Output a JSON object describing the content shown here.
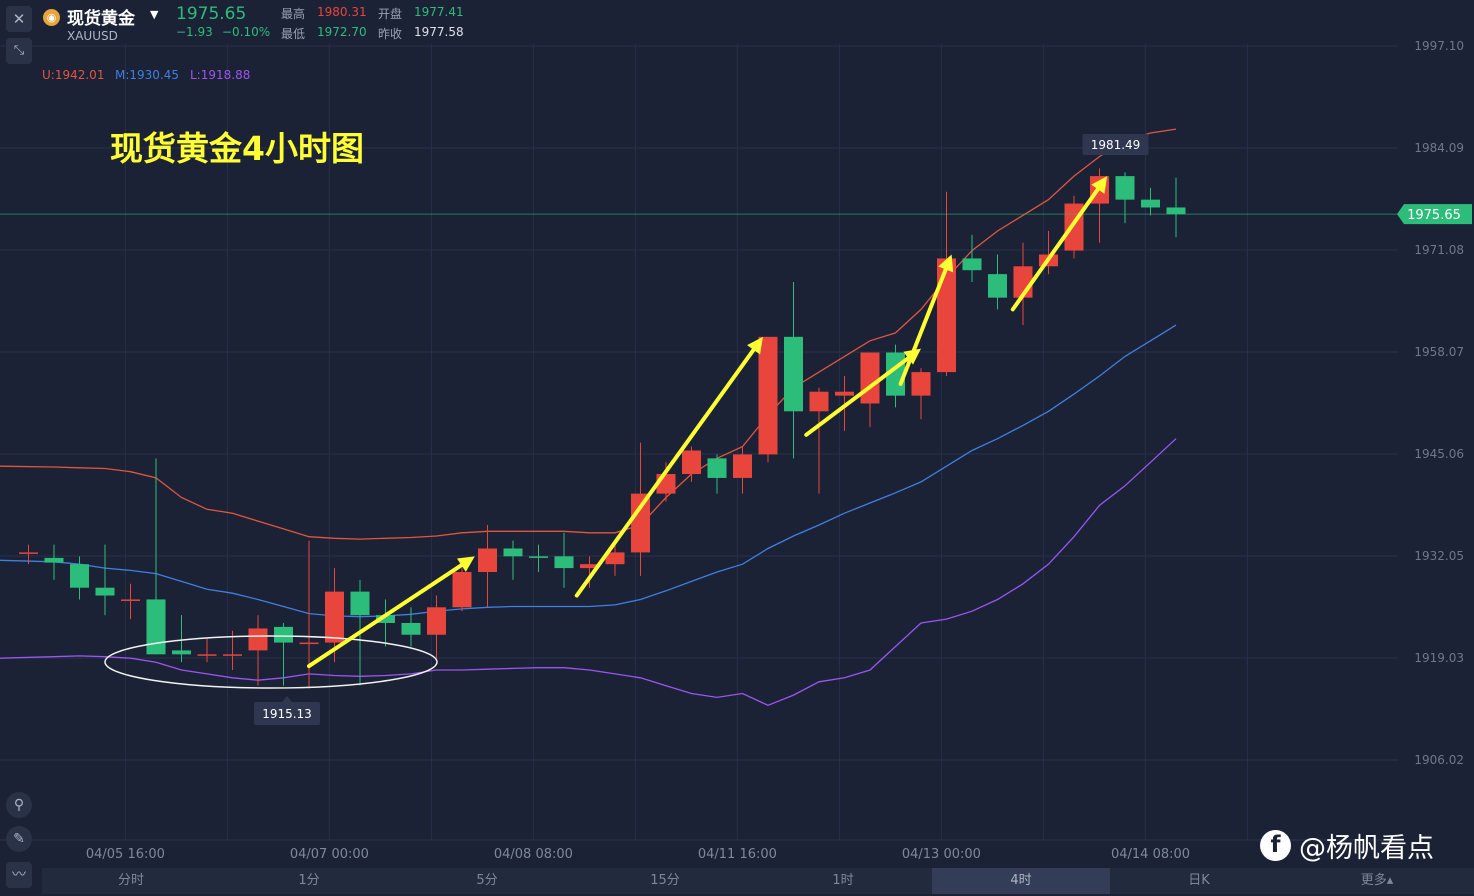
{
  "header": {
    "symbol_name": "现货黄金",
    "symbol_code": "XAUUSD",
    "last_price": "1975.65",
    "change": "−1.93",
    "change_pct": "−0.10%",
    "high_label": "最高",
    "high_value": "1980.31",
    "low_label": "最低",
    "low_value": "1972.70",
    "open_label": "开盘",
    "open_value": "1977.41",
    "prev_close_label": "昨收",
    "prev_close_value": "1977.58"
  },
  "bollinger": {
    "upper": "U:1942.01",
    "middle": "M:1930.45",
    "lower": "L:1918.88"
  },
  "timeframes": [
    "分时",
    "1分",
    "5分",
    "15分",
    "1时",
    "4时",
    "日K",
    "更多▴"
  ],
  "active_timeframe": "4时",
  "watermark": "@杨帆看点",
  "colors": {
    "background": "#1b2236",
    "up": "#e8453c",
    "down": "#2dbd7b",
    "upper_band": "#e0563f",
    "middle_band": "#3f7fe0",
    "lower_band": "#9b55f0",
    "arrow": "#ffff33"
  },
  "chart_data": {
    "type": "candlestick",
    "title": "现货黄金4小时图",
    "ylim": [
      1895.0,
      2000.0
    ],
    "y_ticks": [
      "1997.10",
      "1984.09",
      "1971.08",
      "1958.07",
      "1945.06",
      "1932.05",
      "1919.03",
      "1906.02"
    ],
    "x_ticks": [
      "04/05 16:00",
      "04/07 00:00",
      "04/08 08:00",
      "04/11 16:00",
      "04/13 00:00",
      "04/14 08:00"
    ],
    "last_price_label": "1975.65",
    "max_label": "1981.49",
    "min_label": "1915.13",
    "candles": [
      {
        "o": 1932.5,
        "h": 1933.5,
        "l": 1931.0,
        "c": 1932.5
      },
      {
        "o": 1931.8,
        "h": 1933.5,
        "l": 1929.0,
        "c": 1931.2
      },
      {
        "o": 1931.0,
        "h": 1932.0,
        "l": 1926.5,
        "c": 1928.0
      },
      {
        "o": 1928.0,
        "h": 1933.5,
        "l": 1924.5,
        "c": 1927.0
      },
      {
        "o": 1926.5,
        "h": 1928.5,
        "l": 1924.0,
        "c": 1926.5
      },
      {
        "o": 1926.5,
        "h": 1944.5,
        "l": 1919.5,
        "c": 1919.5
      },
      {
        "o": 1920.0,
        "h": 1924.5,
        "l": 1918.5,
        "c": 1919.5
      },
      {
        "o": 1919.5,
        "h": 1921.5,
        "l": 1918.5,
        "c": 1919.5
      },
      {
        "o": 1919.5,
        "h": 1922.5,
        "l": 1917.5,
        "c": 1919.5
      },
      {
        "o": 1920.0,
        "h": 1924.5,
        "l": 1915.5,
        "c": 1922.8
      },
      {
        "o": 1923.0,
        "h": 1923.5,
        "l": 1915.5,
        "c": 1921.0
      },
      {
        "o": 1921.0,
        "h": 1934.0,
        "l": 1915.13,
        "c": 1921.0
      },
      {
        "o": 1921.0,
        "h": 1930.5,
        "l": 1918.5,
        "c": 1927.5
      },
      {
        "o": 1927.5,
        "h": 1929.0,
        "l": 1915.5,
        "c": 1924.5
      },
      {
        "o": 1924.5,
        "h": 1926.5,
        "l": 1920.5,
        "c": 1923.5
      },
      {
        "o": 1923.5,
        "h": 1925.5,
        "l": 1920.5,
        "c": 1922.0
      },
      {
        "o": 1922.0,
        "h": 1927.0,
        "l": 1919.0,
        "c": 1925.5
      },
      {
        "o": 1925.5,
        "h": 1930.5,
        "l": 1925.0,
        "c": 1930.0
      },
      {
        "o": 1930.0,
        "h": 1936.0,
        "l": 1925.5,
        "c": 1933.0
      },
      {
        "o": 1933.0,
        "h": 1934.0,
        "l": 1929.0,
        "c": 1932.0
      },
      {
        "o": 1932.0,
        "h": 1933.5,
        "l": 1930.0,
        "c": 1931.8
      },
      {
        "o": 1932.0,
        "h": 1935.0,
        "l": 1928.0,
        "c": 1930.5
      },
      {
        "o": 1930.5,
        "h": 1932.0,
        "l": 1928.0,
        "c": 1931.0
      },
      {
        "o": 1931.0,
        "h": 1933.5,
        "l": 1929.5,
        "c": 1932.5
      },
      {
        "o": 1932.5,
        "h": 1946.5,
        "l": 1929.5,
        "c": 1940.0
      },
      {
        "o": 1940.0,
        "h": 1944.0,
        "l": 1939.0,
        "c": 1942.5
      },
      {
        "o": 1942.5,
        "h": 1946.0,
        "l": 1941.5,
        "c": 1945.5
      },
      {
        "o": 1944.5,
        "h": 1945.0,
        "l": 1940.0,
        "c": 1942.0
      },
      {
        "o": 1942.0,
        "h": 1946.0,
        "l": 1940.0,
        "c": 1945.0
      },
      {
        "o": 1945.0,
        "h": 1960.0,
        "l": 1944.0,
        "c": 1960.0
      },
      {
        "o": 1960.0,
        "h": 1967.0,
        "l": 1944.5,
        "c": 1950.5
      },
      {
        "o": 1950.5,
        "h": 1953.5,
        "l": 1940.0,
        "c": 1953.0
      },
      {
        "o": 1952.5,
        "h": 1955.0,
        "l": 1948.0,
        "c": 1953.0
      },
      {
        "o": 1951.5,
        "h": 1958.0,
        "l": 1948.5,
        "c": 1958.0
      },
      {
        "o": 1958.0,
        "h": 1959.0,
        "l": 1951.0,
        "c": 1952.5
      },
      {
        "o": 1952.5,
        "h": 1956.0,
        "l": 1949.5,
        "c": 1955.5
      },
      {
        "o": 1955.5,
        "h": 1978.5,
        "l": 1955.0,
        "c": 1970.0
      },
      {
        "o": 1970.0,
        "h": 1973.0,
        "l": 1967.0,
        "c": 1968.5
      },
      {
        "o": 1968.0,
        "h": 1970.5,
        "l": 1963.5,
        "c": 1965.0
      },
      {
        "o": 1965.0,
        "h": 1972.0,
        "l": 1961.5,
        "c": 1969.0
      },
      {
        "o": 1969.0,
        "h": 1973.5,
        "l": 1968.0,
        "c": 1970.5
      },
      {
        "o": 1971.0,
        "h": 1978.0,
        "l": 1970.0,
        "c": 1977.0
      },
      {
        "o": 1977.0,
        "h": 1981.49,
        "l": 1972.0,
        "c": 1980.5
      },
      {
        "o": 1980.5,
        "h": 1981.0,
        "l": 1974.5,
        "c": 1977.5
      },
      {
        "o": 1977.5,
        "h": 1979.0,
        "l": 1975.5,
        "c": 1976.5
      },
      {
        "o": 1976.5,
        "h": 1980.31,
        "l": 1972.7,
        "c": 1975.65
      }
    ],
    "series": [
      {
        "values": [
          1943.5,
          1943.4,
          1943.3,
          1943.2,
          1942.8,
          1942.0,
          1939.5,
          1938.0,
          1937.5,
          1936.5,
          1935.5,
          1934.5,
          1934.3,
          1934.2,
          1934.3,
          1934.4,
          1934.6,
          1935.0,
          1935.2,
          1935.2,
          1935.2,
          1935.2,
          1935.0,
          1935.0,
          1936.0,
          1939.5,
          1942.5,
          1944.5,
          1946.0,
          1950.0,
          1953.5,
          1955.5,
          1957.5,
          1959.5,
          1960.5,
          1963.5,
          1967.5,
          1971.0,
          1973.5,
          1975.5,
          1977.5,
          1980.5,
          1983.0,
          1985.0,
          1986.0,
          1986.5
        ]
      },
      {
        "values": [
          1931.5,
          1931.3,
          1931.0,
          1930.5,
          1930.2,
          1929.8,
          1928.8,
          1927.8,
          1927.3,
          1926.5,
          1925.6,
          1924.7,
          1924.4,
          1924.3,
          1924.4,
          1924.6,
          1925.0,
          1925.3,
          1925.5,
          1925.6,
          1925.6,
          1925.6,
          1925.6,
          1925.8,
          1926.5,
          1927.6,
          1928.8,
          1930.0,
          1931.0,
          1933.0,
          1934.6,
          1936.0,
          1937.5,
          1938.8,
          1940.1,
          1941.5,
          1943.5,
          1945.5,
          1947.0,
          1948.7,
          1950.5,
          1952.7,
          1955.0,
          1957.5,
          1959.5,
          1961.5
        ]
      },
      {
        "values": [
          1919.0,
          1919.2,
          1919.3,
          1919.2,
          1919.0,
          1918.5,
          1917.5,
          1917.0,
          1916.5,
          1916.2,
          1916.5,
          1917.0,
          1916.8,
          1916.7,
          1916.8,
          1917.0,
          1917.5,
          1917.5,
          1917.6,
          1917.7,
          1917.8,
          1917.8,
          1917.5,
          1917.0,
          1916.5,
          1915.5,
          1914.5,
          1914.0,
          1914.5,
          1913.0,
          1914.3,
          1916.0,
          1916.5,
          1917.5,
          1920.5,
          1923.5,
          1924.0,
          1925.0,
          1926.5,
          1928.5,
          1931.0,
          1934.5,
          1938.5,
          1941.0,
          1944.0,
          1947.0
        ]
      }
    ],
    "annotations": {
      "caption": "现货黄金4小时图"
    }
  }
}
